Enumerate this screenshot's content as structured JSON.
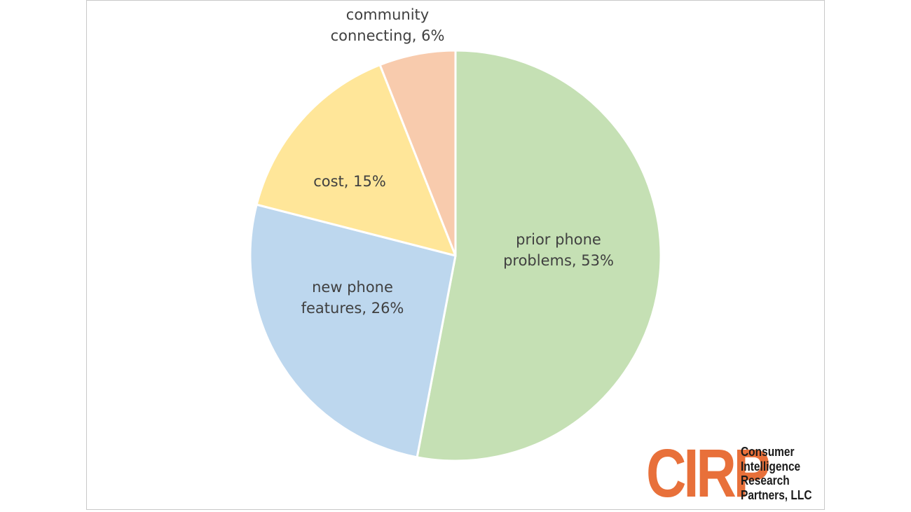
{
  "chart_data": {
    "type": "pie",
    "title": "",
    "slices": [
      {
        "label": [
          "prior phone",
          "problems, 53%"
        ],
        "name": "prior phone problems",
        "value": 53,
        "color": "#c5e0b4"
      },
      {
        "label": [
          "new phone",
          "features, 26%"
        ],
        "name": "new phone features",
        "value": 26,
        "color": "#bdd7ee"
      },
      {
        "label": [
          "cost, 15%"
        ],
        "name": "cost",
        "value": 15,
        "color": "#ffe699"
      },
      {
        "label": [
          "community",
          "connecting, 6%"
        ],
        "name": "community connecting",
        "value": 6,
        "color": "#f8cbad"
      }
    ],
    "start_angle_deg": 0,
    "direction": "clockwise",
    "legend": "none",
    "label_position": "on slices (last slice outside)"
  },
  "logo": {
    "mark": "CIRP",
    "name_lines": [
      "Consumer",
      "Intelligence",
      "Research",
      "Partners, LLC"
    ],
    "mark_color": "#e8703a"
  }
}
